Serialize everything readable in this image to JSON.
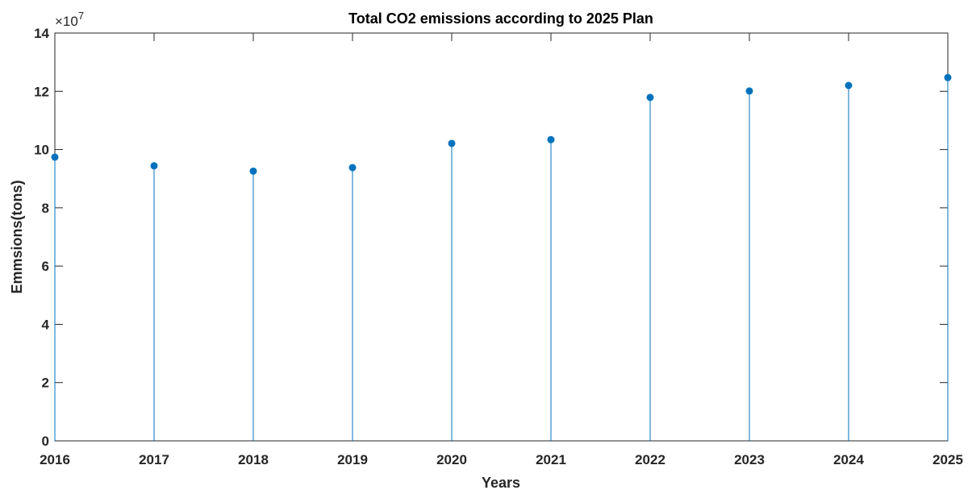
{
  "chart_data": {
    "type": "stem",
    "title": "Total CO2 emissions according to 2025 Plan",
    "xlabel": "Years",
    "ylabel": "Emmsions(tons)",
    "y_exponent_label": "×10",
    "y_exponent_power": "7",
    "y_multiplier": 10000000,
    "x": [
      2016,
      2017,
      2018,
      2019,
      2020,
      2021,
      2022,
      2023,
      2024,
      2025
    ],
    "values": [
      97400000,
      94400000,
      92600000,
      93800000,
      102100000,
      103400000,
      117900000,
      120100000,
      122000000,
      124700000
    ],
    "xlim": [
      2016,
      2025
    ],
    "ylim": [
      0,
      140000000
    ],
    "xticks": [
      "2016",
      "2017",
      "2018",
      "2019",
      "2020",
      "2021",
      "2022",
      "2023",
      "2024",
      "2025"
    ],
    "yticks": [
      0,
      2,
      4,
      6,
      8,
      10,
      12,
      14
    ],
    "ytick_labels": [
      "0",
      "2",
      "4",
      "6",
      "8",
      "10",
      "12",
      "14"
    ],
    "grid": false,
    "colors": {
      "series": "#0072BD",
      "axes": "#262626",
      "title": "#000000"
    }
  }
}
